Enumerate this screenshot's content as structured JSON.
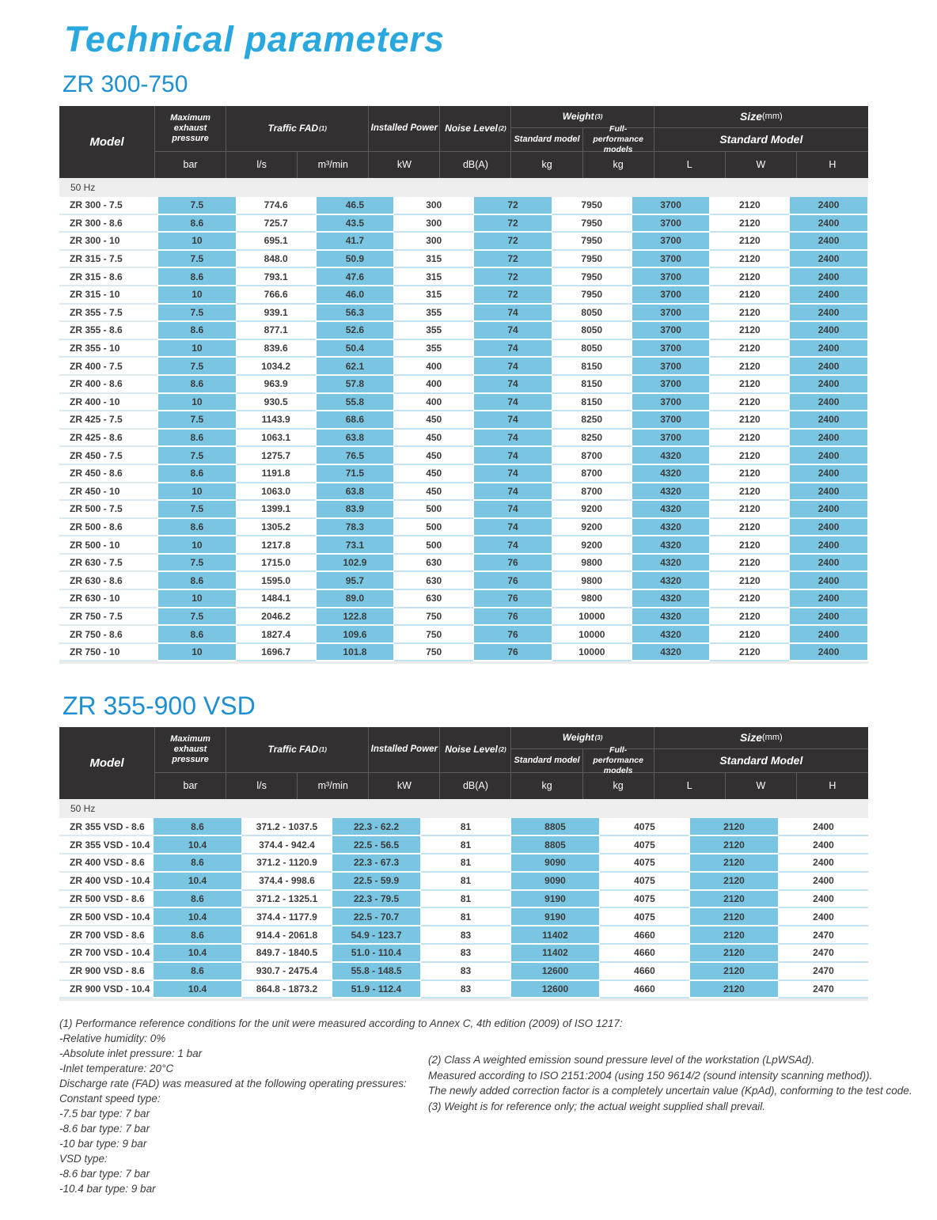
{
  "page": {
    "title": "Technical parameters"
  },
  "table_header": {
    "model": "Model",
    "max_pressure": "Maximum exhaust pressure",
    "traffic_fad": "Traffic FAD",
    "traffic_fad_sup": "(1)",
    "installed_power": "Installed Power",
    "noise_level": "Noise Level",
    "noise_level_sup": "(2)",
    "weight": "Weight",
    "weight_sup": "(3)",
    "weight_standard": "Standard model",
    "weight_full": "Full-performance models",
    "size": "Size",
    "size_unit": "(mm)",
    "size_standard": "Standard Model",
    "units": [
      "bar",
      "l/s",
      "m³/min",
      "kW",
      "dB(A)",
      "kg",
      "kg",
      "L",
      "W",
      "H"
    ]
  },
  "sections": [
    {
      "heading": "ZR 300-750",
      "freq_label": "50 Hz",
      "rows": [
        {
          "model": "ZR 300 - 7.5",
          "values": [
            "7.5",
            "774.6",
            "46.5",
            "300",
            "72",
            "7950",
            "3700",
            "2120",
            "2400"
          ]
        },
        {
          "model": "ZR 300 - 8.6",
          "values": [
            "8.6",
            "725.7",
            "43.5",
            "300",
            "72",
            "7950",
            "3700",
            "2120",
            "2400"
          ]
        },
        {
          "model": "ZR 300 - 10",
          "values": [
            "10",
            "695.1",
            "41.7",
            "300",
            "72",
            "7950",
            "3700",
            "2120",
            "2400"
          ]
        },
        {
          "model": "ZR 315 - 7.5",
          "values": [
            "7.5",
            "848.0",
            "50.9",
            "315",
            "72",
            "7950",
            "3700",
            "2120",
            "2400"
          ]
        },
        {
          "model": "ZR 315 - 8.6",
          "values": [
            "8.6",
            "793.1",
            "47.6",
            "315",
            "72",
            "7950",
            "3700",
            "2120",
            "2400"
          ]
        },
        {
          "model": "ZR 315 - 10",
          "values": [
            "10",
            "766.6",
            "46.0",
            "315",
            "72",
            "7950",
            "3700",
            "2120",
            "2400"
          ]
        },
        {
          "model": "ZR 355 - 7.5",
          "values": [
            "7.5",
            "939.1",
            "56.3",
            "355",
            "74",
            "8050",
            "3700",
            "2120",
            "2400"
          ]
        },
        {
          "model": "ZR 355 - 8.6",
          "values": [
            "8.6",
            "877.1",
            "52.6",
            "355",
            "74",
            "8050",
            "3700",
            "2120",
            "2400"
          ]
        },
        {
          "model": "ZR 355 - 10",
          "values": [
            "10",
            "839.6",
            "50.4",
            "355",
            "74",
            "8050",
            "3700",
            "2120",
            "2400"
          ]
        },
        {
          "model": "ZR 400 - 7.5",
          "values": [
            "7.5",
            "1034.2",
            "62.1",
            "400",
            "74",
            "8150",
            "3700",
            "2120",
            "2400"
          ]
        },
        {
          "model": "ZR 400 - 8.6",
          "values": [
            "8.6",
            "963.9",
            "57.8",
            "400",
            "74",
            "8150",
            "3700",
            "2120",
            "2400"
          ]
        },
        {
          "model": "ZR 400 - 10",
          "values": [
            "10",
            "930.5",
            "55.8",
            "400",
            "74",
            "8150",
            "3700",
            "2120",
            "2400"
          ]
        },
        {
          "model": "ZR 425 - 7.5",
          "values": [
            "7.5",
            "1143.9",
            "68.6",
            "450",
            "74",
            "8250",
            "3700",
            "2120",
            "2400"
          ]
        },
        {
          "model": "ZR 425 - 8.6",
          "values": [
            "8.6",
            "1063.1",
            "63.8",
            "450",
            "74",
            "8250",
            "3700",
            "2120",
            "2400"
          ]
        },
        {
          "model": "ZR 450 - 7.5",
          "values": [
            "7.5",
            "1275.7",
            "76.5",
            "450",
            "74",
            "8700",
            "4320",
            "2120",
            "2400"
          ]
        },
        {
          "model": "ZR 450 - 8.6",
          "values": [
            "8.6",
            "1191.8",
            "71.5",
            "450",
            "74",
            "8700",
            "4320",
            "2120",
            "2400"
          ]
        },
        {
          "model": "ZR 450 - 10",
          "values": [
            "10",
            "1063.0",
            "63.8",
            "450",
            "74",
            "8700",
            "4320",
            "2120",
            "2400"
          ]
        },
        {
          "model": "ZR 500 - 7.5",
          "values": [
            "7.5",
            "1399.1",
            "83.9",
            "500",
            "74",
            "9200",
            "4320",
            "2120",
            "2400"
          ]
        },
        {
          "model": "ZR 500 - 8.6",
          "values": [
            "8.6",
            "1305.2",
            "78.3",
            "500",
            "74",
            "9200",
            "4320",
            "2120",
            "2400"
          ]
        },
        {
          "model": "ZR 500 - 10",
          "values": [
            "10",
            "1217.8",
            "73.1",
            "500",
            "74",
            "9200",
            "4320",
            "2120",
            "2400"
          ]
        },
        {
          "model": "ZR 630 - 7.5",
          "values": [
            "7.5",
            "1715.0",
            "102.9",
            "630",
            "76",
            "9800",
            "4320",
            "2120",
            "2400"
          ]
        },
        {
          "model": "ZR 630 - 8.6",
          "values": [
            "8.6",
            "1595.0",
            "95.7",
            "630",
            "76",
            "9800",
            "4320",
            "2120",
            "2400"
          ]
        },
        {
          "model": "ZR 630 - 10",
          "values": [
            "10",
            "1484.1",
            "89.0",
            "630",
            "76",
            "9800",
            "4320",
            "2120",
            "2400"
          ]
        },
        {
          "model": "ZR 750 - 7.5",
          "values": [
            "7.5",
            "2046.2",
            "122.8",
            "750",
            "76",
            "10000",
            "4320",
            "2120",
            "2400"
          ]
        },
        {
          "model": "ZR 750 - 8.6",
          "values": [
            "8.6",
            "1827.4",
            "109.6",
            "750",
            "76",
            "10000",
            "4320",
            "2120",
            "2400"
          ]
        },
        {
          "model": "ZR 750 - 10",
          "values": [
            "10",
            "1696.7",
            "101.8",
            "750",
            "76",
            "10000",
            "4320",
            "2120",
            "2400"
          ]
        }
      ]
    },
    {
      "heading": "ZR 355-900 VSD",
      "freq_label": "50 Hz",
      "rows": [
        {
          "model": "ZR 355 VSD - 8.6",
          "values": [
            "8.6",
            "371.2 - 1037.5",
            "22.3 - 62.2",
            "81",
            "8805",
            "4075",
            "2120",
            "2400"
          ]
        },
        {
          "model": "ZR 355 VSD - 10.4",
          "values": [
            "10.4",
            "374.4 - 942.4",
            "22.5 - 56.5",
            "81",
            "8805",
            "4075",
            "2120",
            "2400"
          ]
        },
        {
          "model": "ZR 400 VSD - 8.6",
          "values": [
            "8.6",
            "371.2 - 1120.9",
            "22.3 - 67.3",
            "81",
            "9090",
            "4075",
            "2120",
            "2400"
          ]
        },
        {
          "model": "ZR 400 VSD - 10.4",
          "values": [
            "10.4",
            "374.4 - 998.6",
            "22.5 - 59.9",
            "81",
            "9090",
            "4075",
            "2120",
            "2400"
          ]
        },
        {
          "model": "ZR 500 VSD - 8.6",
          "values": [
            "8.6",
            "371.2 - 1325.1",
            "22.3 - 79.5",
            "81",
            "9190",
            "4075",
            "2120",
            "2400"
          ]
        },
        {
          "model": "ZR 500 VSD - 10.4",
          "values": [
            "10.4",
            "374.4 - 1177.9",
            "22.5 - 70.7",
            "81",
            "9190",
            "4075",
            "2120",
            "2400"
          ]
        },
        {
          "model": "ZR 700 VSD - 8.6",
          "values": [
            "8.6",
            "914.4 - 2061.8",
            "54.9 - 123.7",
            "83",
            "11402",
            "4660",
            "2120",
            "2470"
          ]
        },
        {
          "model": "ZR 700 VSD - 10.4",
          "values": [
            "10.4",
            "849.7 - 1840.5",
            "51.0 - 110.4",
            "83",
            "11402",
            "4660",
            "2120",
            "2470"
          ]
        },
        {
          "model": "ZR 900 VSD - 8.6",
          "values": [
            "8.6",
            "930.7 - 2475.4",
            "55.8 - 148.5",
            "83",
            "12600",
            "4660",
            "2120",
            "2470"
          ]
        },
        {
          "model": "ZR 900 VSD - 10.4",
          "values": [
            "10.4",
            "864.8 - 1873.2",
            "51.9 - 112.4",
            "83",
            "12600",
            "4660",
            "2120",
            "2470"
          ]
        }
      ]
    }
  ],
  "footnotes": {
    "left": [
      "(1) Performance reference conditions for the unit were measured according to Annex C, 4th edition (2009) of ISO 1217:",
      "-Relative humidity: 0%",
      "-Absolute inlet pressure: 1 bar",
      "-Inlet temperature: 20°C",
      "Discharge rate (FAD) was measured at the following operating pressures:",
      "Constant speed type:",
      "-7.5 bar type: 7 bar",
      "-8.6 bar type: 7 bar",
      "-10 bar type: 9 bar",
      "VSD type:",
      "-8.6 bar type: 7 bar",
      "-10.4 bar type: 9 bar"
    ],
    "right": [
      "(2) Class A weighted emission sound pressure level of the workstation (LpWSAd).",
      "Measured according to ISO 2151:2004 (using 150 9614/2 (sound intensity scanning method)).",
      "The newly added correction factor is a completely uncertain value (KpAd), conforming to the test code.",
      "(3) Weight is for reference only; the actual weight supplied shall prevail."
    ]
  },
  "colors": {
    "accent_blue": "#29a8e0",
    "heading_blue": "#1e8fd3",
    "header_bg": "#323030",
    "cell_blue": "#7ac6e2",
    "freq_band_bg": "#efeeee"
  }
}
